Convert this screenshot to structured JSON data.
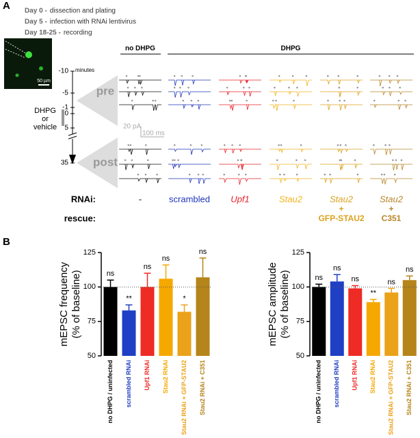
{
  "panel_a": {
    "label": "A",
    "protocol": [
      {
        "day": "Day 0 -",
        "step": "dissection and plating"
      },
      {
        "day": "Day 5 -",
        "step": "infection with RNAi lentivirus"
      },
      {
        "day": "Day 18-25 -",
        "step": "recording"
      }
    ],
    "image_scale": "50 µm",
    "timeline": {
      "unit": "minutes",
      "ticks": [
        "-10",
        "-5",
        "-1",
        "0",
        "5",
        "35"
      ],
      "treatment": [
        "DHPG",
        "or",
        "vehicle"
      ]
    },
    "phases": [
      "pre",
      "post"
    ],
    "conditions": [
      "no DHPG",
      "DHPG"
    ],
    "scale_bar": [
      "20 pA",
      "100 ms"
    ],
    "rnai_label": "RNAi:",
    "rescue_label": "rescue:",
    "rnai": [
      "-",
      "scrambled",
      "Upf1",
      "Stau2",
      "Stau2",
      "Stau2"
    ],
    "rescue": [
      null,
      null,
      null,
      null,
      [
        "+",
        "GFP-STAU2"
      ],
      [
        "+",
        "C351"
      ]
    ],
    "colors": [
      "#111111",
      "#2036b8",
      "#e8232a",
      "#f2b31c",
      "#dba21e",
      "#b8862a"
    ]
  },
  "panel_b_label": "B",
  "chart_data": [
    {
      "type": "bar",
      "ylabel": [
        "mEPSC frequency",
        "(% of baseline)"
      ],
      "categories": [
        "no DHPG / uninfected",
        "scrambled RNAi",
        "Upf1 RNAi",
        "Stau2 RNAi",
        "Stau2 RNAi + GFP-STAU2",
        "Stau2 RNAi + C351"
      ],
      "values": [
        100,
        83,
        100,
        106,
        82,
        107
      ],
      "errors": [
        5,
        4,
        10,
        10,
        5,
        14
      ],
      "annotations": [
        "ns",
        "**",
        "ns",
        "ns",
        "*",
        "ns"
      ],
      "colors": [
        "#000000",
        "#1f3fc4",
        "#ee2b24",
        "#f5a800",
        "#eaa21a",
        "#b5841a"
      ],
      "ylim": [
        50,
        125
      ],
      "yticks": [
        50,
        75,
        100,
        125
      ],
      "reference": 100
    },
    {
      "type": "bar",
      "ylabel": [
        "mEPSC amplitude",
        "(% of baseline)"
      ],
      "categories": [
        "no DHPG / uninfected",
        "scrambled RNAi",
        "Upf1 RNAi",
        "Stau2 RNAi",
        "Stau2 RNAi + GFP-STAU2",
        "Stau2 RNAi + C351"
      ],
      "values": [
        100,
        104,
        99,
        89,
        96,
        105
      ],
      "errors": [
        2,
        5,
        2,
        2,
        3,
        3
      ],
      "annotations": [
        "ns",
        "ns",
        "ns",
        "**",
        "ns",
        "ns"
      ],
      "colors": [
        "#000000",
        "#1f3fc4",
        "#ee2b24",
        "#f5a800",
        "#eaa21a",
        "#b5841a"
      ],
      "ylim": [
        50,
        125
      ],
      "yticks": [
        50,
        75,
        100,
        125
      ],
      "reference": 100
    }
  ]
}
